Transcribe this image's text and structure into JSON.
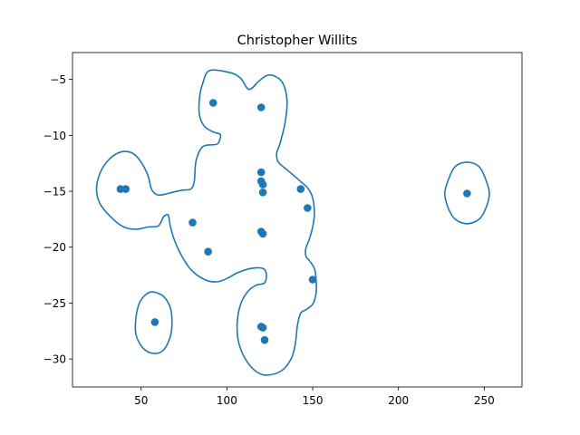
{
  "chart_data": {
    "type": "scatter",
    "title": "Christopher Willits",
    "xlabel": "",
    "ylabel": "",
    "xlim": [
      10,
      272
    ],
    "ylim": [
      -32.5,
      -2.6
    ],
    "xticks": [
      50,
      100,
      150,
      200,
      250
    ],
    "yticks": [
      -5,
      -10,
      -15,
      -20,
      -25,
      -30
    ],
    "grid": false,
    "color": "#1f77b4",
    "points": [
      {
        "x": 92,
        "y": -7.1
      },
      {
        "x": 120,
        "y": -7.5
      },
      {
        "x": 120,
        "y": -13.3
      },
      {
        "x": 120,
        "y": -14.1
      },
      {
        "x": 121,
        "y": -14.4
      },
      {
        "x": 121,
        "y": -15.1
      },
      {
        "x": 143,
        "y": -14.8
      },
      {
        "x": 147,
        "y": -16.5
      },
      {
        "x": 38,
        "y": -14.8
      },
      {
        "x": 41,
        "y": -14.8
      },
      {
        "x": 80,
        "y": -17.8
      },
      {
        "x": 89,
        "y": -20.4
      },
      {
        "x": 120,
        "y": -18.6
      },
      {
        "x": 121,
        "y": -18.8
      },
      {
        "x": 150,
        "y": -22.9
      },
      {
        "x": 58,
        "y": -26.7
      },
      {
        "x": 120,
        "y": -27.1
      },
      {
        "x": 121,
        "y": -27.2
      },
      {
        "x": 122,
        "y": -28.3
      },
      {
        "x": 240,
        "y": -15.2
      }
    ],
    "contours": [
      [
        [
          90,
          -4.2
        ],
        [
          102,
          -4.4
        ],
        [
          108,
          -4.9
        ],
        [
          113,
          -5.9
        ],
        [
          119,
          -5.1
        ],
        [
          125,
          -4.6
        ],
        [
          132,
          -5.2
        ],
        [
          135,
          -6.8
        ],
        [
          134,
          -8.8
        ],
        [
          131,
          -10.7
        ],
        [
          129,
          -11.6
        ],
        [
          130,
          -12.4
        ],
        [
          136,
          -13.2
        ],
        [
          142,
          -14.0
        ],
        [
          147,
          -14.7
        ],
        [
          150,
          -15.6
        ],
        [
          151,
          -17.0
        ],
        [
          150,
          -18.2
        ],
        [
          148,
          -19.3
        ],
        [
          146,
          -20.1
        ],
        [
          146,
          -20.8
        ],
        [
          148,
          -21.2
        ],
        [
          151,
          -21.9
        ],
        [
          152,
          -22.9
        ],
        [
          152,
          -24.1
        ],
        [
          150,
          -25.1
        ],
        [
          146,
          -25.6
        ],
        [
          143,
          -25.9
        ],
        [
          141,
          -27.1
        ],
        [
          140,
          -28.5
        ],
        [
          138,
          -29.8
        ],
        [
          133,
          -30.9
        ],
        [
          126,
          -31.4
        ],
        [
          119,
          -31.3
        ],
        [
          112,
          -30.3
        ],
        [
          107,
          -28.6
        ],
        [
          106,
          -26.8
        ],
        [
          108,
          -25.1
        ],
        [
          112,
          -24.0
        ],
        [
          117,
          -23.4
        ],
        [
          122,
          -23.2
        ],
        [
          123,
          -22.4
        ],
        [
          121,
          -21.9
        ],
        [
          114,
          -21.9
        ],
        [
          106,
          -22.3
        ],
        [
          100,
          -22.8
        ],
        [
          94,
          -23.1
        ],
        [
          87,
          -22.9
        ],
        [
          79,
          -22.0
        ],
        [
          73,
          -20.6
        ],
        [
          69,
          -19.2
        ],
        [
          67,
          -18.1
        ],
        [
          66,
          -17.2
        ],
        [
          65,
          -17.1
        ],
        [
          63,
          -17.3
        ],
        [
          60,
          -18.1
        ],
        [
          54,
          -18.2
        ],
        [
          47,
          -18.4
        ],
        [
          40,
          -18.2
        ],
        [
          33,
          -17.4
        ],
        [
          26,
          -16.1
        ],
        [
          24,
          -14.8
        ],
        [
          26,
          -13.4
        ],
        [
          31,
          -12.2
        ],
        [
          38,
          -11.5
        ],
        [
          45,
          -11.6
        ],
        [
          50,
          -12.4
        ],
        [
          54,
          -13.6
        ],
        [
          56,
          -14.8
        ],
        [
          59,
          -15.3
        ],
        [
          63,
          -15.3
        ],
        [
          68,
          -15.1
        ],
        [
          74,
          -14.9
        ],
        [
          79,
          -14.8
        ],
        [
          81,
          -14.1
        ],
        [
          82,
          -12.3
        ],
        [
          86,
          -11.0
        ],
        [
          94,
          -10.8
        ],
        [
          96,
          -10.3
        ],
        [
          96,
          -9.9
        ],
        [
          92,
          -9.7
        ],
        [
          87,
          -9.2
        ],
        [
          84,
          -8.2
        ],
        [
          84,
          -6.7
        ],
        [
          86,
          -5.3
        ],
        [
          90,
          -4.2
        ]
      ],
      [
        [
          57,
          -24.0
        ],
        [
          63,
          -24.4
        ],
        [
          67,
          -25.4
        ],
        [
          68,
          -26.7
        ],
        [
          67,
          -28.0
        ],
        [
          63,
          -29.2
        ],
        [
          57,
          -29.5
        ],
        [
          51,
          -29.0
        ],
        [
          47,
          -27.8
        ],
        [
          47,
          -26.3
        ],
        [
          49,
          -25.0
        ],
        [
          53,
          -24.2
        ],
        [
          57,
          -24.0
        ]
      ],
      [
        [
          240,
          -12.4
        ],
        [
          247,
          -12.8
        ],
        [
          251,
          -14.0
        ],
        [
          253,
          -15.2
        ],
        [
          251,
          -16.5
        ],
        [
          247,
          -17.5
        ],
        [
          240,
          -17.9
        ],
        [
          233,
          -17.5
        ],
        [
          229,
          -16.5
        ],
        [
          227,
          -15.2
        ],
        [
          229,
          -14.0
        ],
        [
          233,
          -12.8
        ],
        [
          240,
          -12.4
        ]
      ]
    ]
  }
}
